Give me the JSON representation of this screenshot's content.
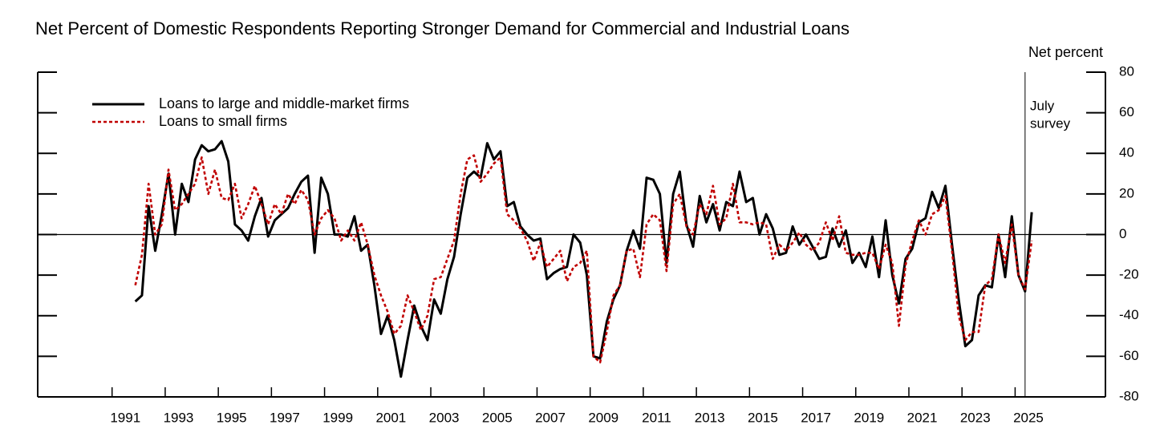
{
  "chart_data": {
    "type": "line",
    "title": "Net Percent of Domestic Respondents Reporting Stronger Demand for Commercial and Industrial Loans",
    "y_label": "Net percent",
    "annotation": {
      "text": [
        "July",
        "survey"
      ],
      "x": 2025.375
    },
    "xlim": [
      1988.2,
      2028.4
    ],
    "xticks": [
      1991,
      1993,
      1995,
      1997,
      1999,
      2001,
      2003,
      2005,
      2007,
      2009,
      2011,
      2013,
      2015,
      2017,
      2019,
      2021,
      2023,
      2025
    ],
    "ylim": [
      -80,
      80
    ],
    "yticks": [
      -80,
      -60,
      -40,
      -20,
      0,
      20,
      40,
      60,
      80
    ],
    "x": [
      1991.875,
      1992.125,
      1992.375,
      1992.625,
      1992.875,
      1993.125,
      1993.375,
      1993.625,
      1993.875,
      1994.125,
      1994.375,
      1994.625,
      1994.875,
      1995.125,
      1995.375,
      1995.625,
      1995.875,
      1996.125,
      1996.375,
      1996.625,
      1996.875,
      1997.125,
      1997.375,
      1997.625,
      1997.875,
      1998.125,
      1998.375,
      1998.625,
      1998.875,
      1999.125,
      1999.375,
      1999.625,
      1999.875,
      2000.125,
      2000.375,
      2000.625,
      2000.875,
      2001.125,
      2001.375,
      2001.625,
      2001.875,
      2002.125,
      2002.375,
      2002.625,
      2002.875,
      2003.125,
      2003.375,
      2003.625,
      2003.875,
      2004.125,
      2004.375,
      2004.625,
      2004.875,
      2005.125,
      2005.375,
      2005.625,
      2005.875,
      2006.125,
      2006.375,
      2006.625,
      2006.875,
      2007.125,
      2007.375,
      2007.625,
      2007.875,
      2008.125,
      2008.375,
      2008.625,
      2008.875,
      2009.125,
      2009.375,
      2009.625,
      2009.875,
      2010.125,
      2010.375,
      2010.625,
      2010.875,
      2011.125,
      2011.375,
      2011.625,
      2011.875,
      2012.125,
      2012.375,
      2012.625,
      2012.875,
      2013.125,
      2013.375,
      2013.625,
      2013.875,
      2014.125,
      2014.375,
      2014.625,
      2014.875,
      2015.125,
      2015.375,
      2015.625,
      2015.875,
      2016.125,
      2016.375,
      2016.625,
      2016.875,
      2017.125,
      2017.375,
      2017.625,
      2017.875,
      2018.125,
      2018.375,
      2018.625,
      2018.875,
      2019.125,
      2019.375,
      2019.625,
      2019.875,
      2020.125,
      2020.375,
      2020.625,
      2020.875,
      2021.125,
      2021.375,
      2021.625,
      2021.875,
      2022.125,
      2022.375,
      2022.625,
      2022.875,
      2023.125,
      2023.375,
      2023.625,
      2023.875,
      2024.125,
      2024.375,
      2024.625,
      2024.875,
      2025.125,
      2025.375,
      2025.625
    ],
    "series": [
      {
        "name": "Loans to large and middle-market firms",
        "color": "#000000",
        "style": "solid",
        "values": [
          -33,
          -30,
          14,
          -8,
          10,
          30,
          0,
          25,
          16,
          37,
          44,
          41,
          42,
          46,
          36,
          5,
          2,
          -3,
          9,
          18,
          -1,
          7,
          10,
          13,
          20,
          26,
          29,
          -9,
          28,
          20,
          0,
          0,
          -1,
          9,
          -8,
          -5,
          -25,
          -49,
          -40,
          -52,
          -70,
          -52,
          -35,
          -45,
          -52,
          -32,
          -39,
          -22,
          -11,
          10,
          28,
          31,
          28,
          45,
          37,
          41,
          14,
          16,
          4,
          0,
          -3,
          -2,
          -22,
          -19,
          -17,
          -16,
          0,
          -4,
          -20,
          -60,
          -61,
          -43,
          -32,
          -25,
          -8,
          2,
          -7,
          28,
          27,
          20,
          -14,
          20,
          31,
          5,
          -6,
          19,
          6,
          15,
          2,
          16,
          14,
          31,
          16,
          18,
          0,
          10,
          3,
          -10,
          -9,
          4,
          -5,
          0,
          -6,
          -12,
          -11,
          3,
          -6,
          2,
          -14,
          -9,
          -16,
          -1,
          -21,
          7,
          -20,
          -34,
          -12,
          -7,
          6,
          8,
          21,
          13,
          24,
          -5,
          -32,
          -55,
          -52,
          -30,
          -25,
          -26,
          0,
          -21,
          9,
          -20,
          -28,
          11
        ]
      },
      {
        "name": "Loans to small firms",
        "color": "#c00000",
        "style": "dotted",
        "values": [
          -25,
          -10,
          25,
          0,
          5,
          32,
          12,
          15,
          20,
          25,
          38,
          20,
          32,
          18,
          17,
          25,
          8,
          15,
          24,
          15,
          5,
          15,
          10,
          20,
          15,
          22,
          17,
          0,
          8,
          12,
          8,
          -3,
          2,
          -3,
          6,
          -5,
          -20,
          -30,
          -38,
          -49,
          -45,
          -30,
          -38,
          -47,
          -40,
          -22,
          -21,
          -12,
          -3,
          20,
          37,
          39,
          26,
          30,
          35,
          38,
          10,
          7,
          3,
          -3,
          -13,
          -4,
          -16,
          -12,
          -8,
          -23,
          -16,
          -14,
          -8,
          -60,
          -63,
          -48,
          -30,
          -25,
          -8,
          -7,
          -21,
          5,
          10,
          7,
          -18,
          15,
          20,
          4,
          0,
          15,
          10,
          24,
          5,
          8,
          25,
          6,
          6,
          5,
          6,
          5,
          -12,
          -5,
          -8,
          -4,
          1,
          -5,
          -8,
          -4,
          6,
          -3,
          9,
          -9,
          -10,
          -10,
          -9,
          -9,
          -17,
          -5,
          -14,
          -45,
          -15,
          -3,
          7,
          0,
          10,
          12,
          19,
          -8,
          -40,
          -52,
          -48,
          -48,
          -25,
          -22,
          0,
          -14,
          5,
          -20,
          -27,
          -3
        ]
      }
    ]
  }
}
